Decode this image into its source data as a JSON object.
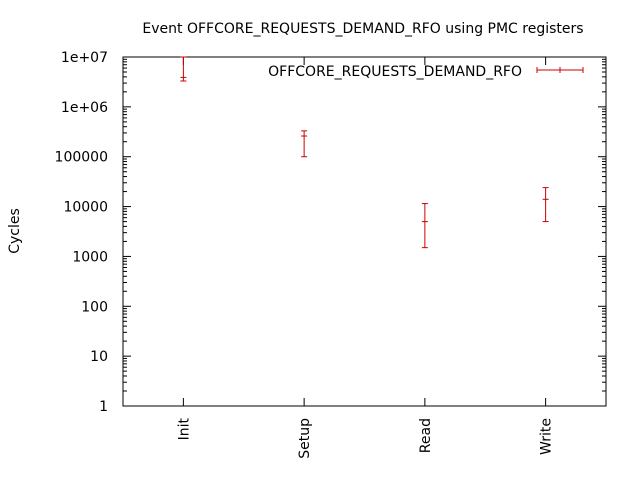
{
  "chart_data": {
    "type": "scatter",
    "title": "Event OFFCORE_REQUESTS_DEMAND_RFO using PMC registers",
    "xlabel": "",
    "ylabel": "Cycles",
    "yscale": "log",
    "ylim": [
      1,
      10000000
    ],
    "y_ticks": [
      "1",
      "10",
      "100",
      "1000",
      "10000",
      "100000",
      "1e+06",
      "1e+07"
    ],
    "categories": [
      "Init",
      "Setup",
      "Read",
      "Write"
    ],
    "grid": false,
    "legend_position": "top-right",
    "series": [
      {
        "name": "OFFCORE_REQUESTS_DEMAND_RFO",
        "color": "#cc0000",
        "values": [
          3900000,
          260000,
          5000,
          14000
        ],
        "error_low": [
          3300000,
          100000,
          1500,
          5000
        ],
        "error_high": [
          10000000,
          330000,
          11500,
          24000
        ]
      }
    ]
  }
}
